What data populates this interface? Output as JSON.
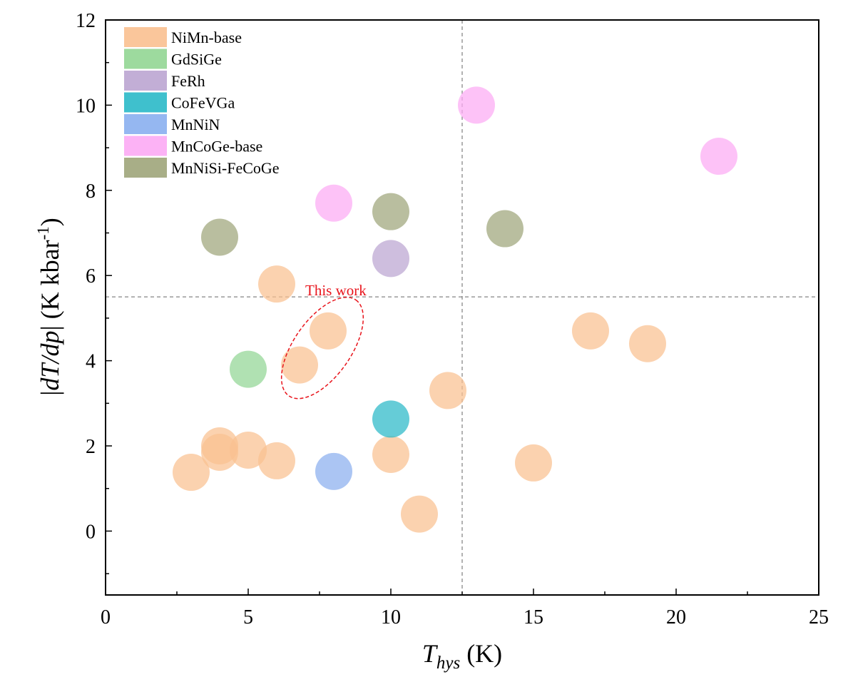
{
  "chart_data": {
    "type": "scatter",
    "xlabel": {
      "main": "T",
      "sub": "hys",
      "unit": " (K)"
    },
    "ylabel": {
      "prefix": "|",
      "main": "dT/dp",
      "suffix": "| (K kbar",
      "sup": "-1",
      "close": ")"
    },
    "xlim": [
      0,
      25
    ],
    "ylim": [
      -1.5,
      12
    ],
    "xticks": [
      0,
      5,
      10,
      15,
      20,
      25
    ],
    "yticks": [
      0,
      2,
      4,
      6,
      8,
      10,
      12
    ],
    "grid": false,
    "legend_position": "top-left",
    "reference_lines": {
      "x": 12.5,
      "y": 5.5
    },
    "annotation": {
      "text": "This work",
      "color": "#e8141c",
      "ellipse_center": [
        7.6,
        4.3
      ]
    },
    "series": [
      {
        "name": "NiMn-base",
        "color": "#fac090",
        "points": [
          [
            6,
            5.8
          ],
          [
            7.8,
            4.7
          ],
          [
            6.8,
            3.9
          ],
          [
            17,
            4.7
          ],
          [
            19,
            4.4
          ],
          [
            12,
            3.3
          ],
          [
            4,
            2.0
          ],
          [
            4,
            1.85
          ],
          [
            5,
            1.9
          ],
          [
            6,
            1.65
          ],
          [
            3,
            1.38
          ],
          [
            10,
            1.8
          ],
          [
            15,
            1.6
          ],
          [
            11,
            0.4
          ]
        ]
      },
      {
        "name": "GdSiGe",
        "color": "#92d694",
        "points": [
          [
            5,
            3.8
          ]
        ]
      },
      {
        "name": "FeRh",
        "color": "#bba5d1",
        "points": [
          [
            10,
            6.4
          ]
        ]
      },
      {
        "name": "CoFeVGa",
        "color": "#2ab9c8",
        "points": [
          [
            10,
            2.63
          ]
        ]
      },
      {
        "name": "MnNiN",
        "color": "#8aafef",
        "points": [
          [
            8,
            1.4
          ]
        ]
      },
      {
        "name": "MnCoGe-base",
        "color": "#fcaaf4",
        "points": [
          [
            13,
            10.0
          ],
          [
            21.5,
            8.8
          ],
          [
            8,
            7.7
          ]
        ]
      },
      {
        "name": "MnNiSi-FeCoGe",
        "color": "#9ea57a",
        "points": [
          [
            4,
            6.9
          ],
          [
            10,
            7.5
          ],
          [
            14,
            7.1
          ]
        ]
      }
    ]
  }
}
